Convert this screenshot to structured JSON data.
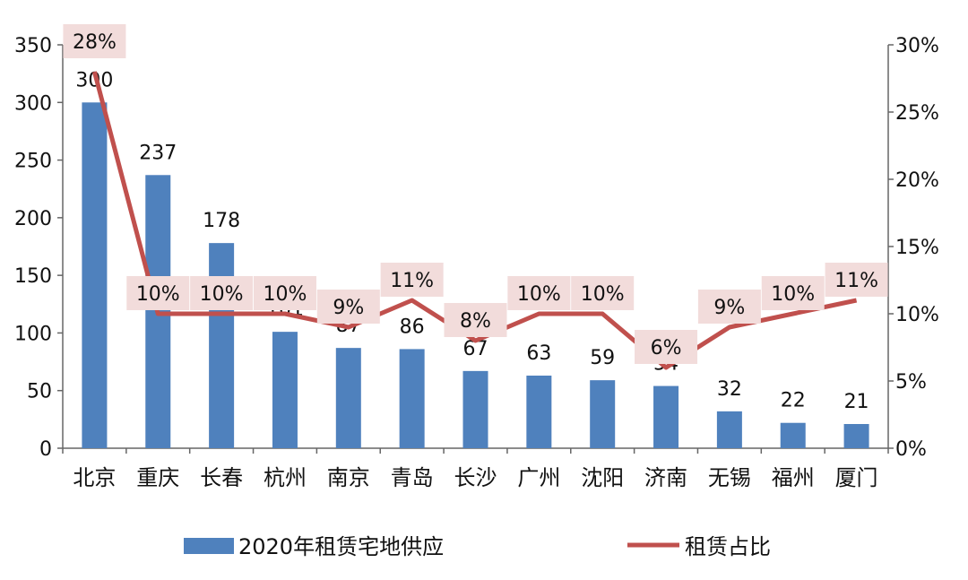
{
  "chart_data": {
    "type": "bar",
    "categories": [
      "北京",
      "重庆",
      "长春",
      "杭州",
      "南京",
      "青岛",
      "长沙",
      "广州",
      "沈阳",
      "济南",
      "无锡",
      "福州",
      "厦门"
    ],
    "series": [
      {
        "name": "2020年租赁宅地供应",
        "type": "bar",
        "axis": "left",
        "color": "#4f81bd",
        "values": [
          300,
          237,
          178,
          101,
          87,
          86,
          67,
          63,
          59,
          54,
          32,
          22,
          21
        ],
        "labels": [
          "300",
          "237",
          "178",
          "101",
          "87",
          "86",
          "67",
          "63",
          "59",
          "54",
          "32",
          "22",
          "21"
        ]
      },
      {
        "name": "租赁占比",
        "type": "line",
        "axis": "right",
        "color": "#c0504d",
        "values": [
          0.28,
          0.1,
          0.1,
          0.1,
          0.09,
          0.11,
          0.08,
          0.1,
          0.1,
          0.06,
          0.09,
          0.1,
          0.11
        ],
        "labels": [
          "28%",
          "10%",
          "10%",
          "10%",
          "9%",
          "11%",
          "8%",
          "10%",
          "10%",
          "6%",
          "9%",
          "10%",
          "11%"
        ],
        "label_bg": "#f2dcdb"
      }
    ],
    "y_left": {
      "min": 0,
      "max": 350,
      "ticks": [
        "0",
        "50",
        "100",
        "150",
        "200",
        "250",
        "300",
        "350"
      ]
    },
    "y_right": {
      "min": 0,
      "max": 0.3,
      "ticks": [
        "0%",
        "5%",
        "10%",
        "15%",
        "20%",
        "25%",
        "30%"
      ]
    },
    "legend": {
      "position": "bottom"
    },
    "grid": false
  }
}
